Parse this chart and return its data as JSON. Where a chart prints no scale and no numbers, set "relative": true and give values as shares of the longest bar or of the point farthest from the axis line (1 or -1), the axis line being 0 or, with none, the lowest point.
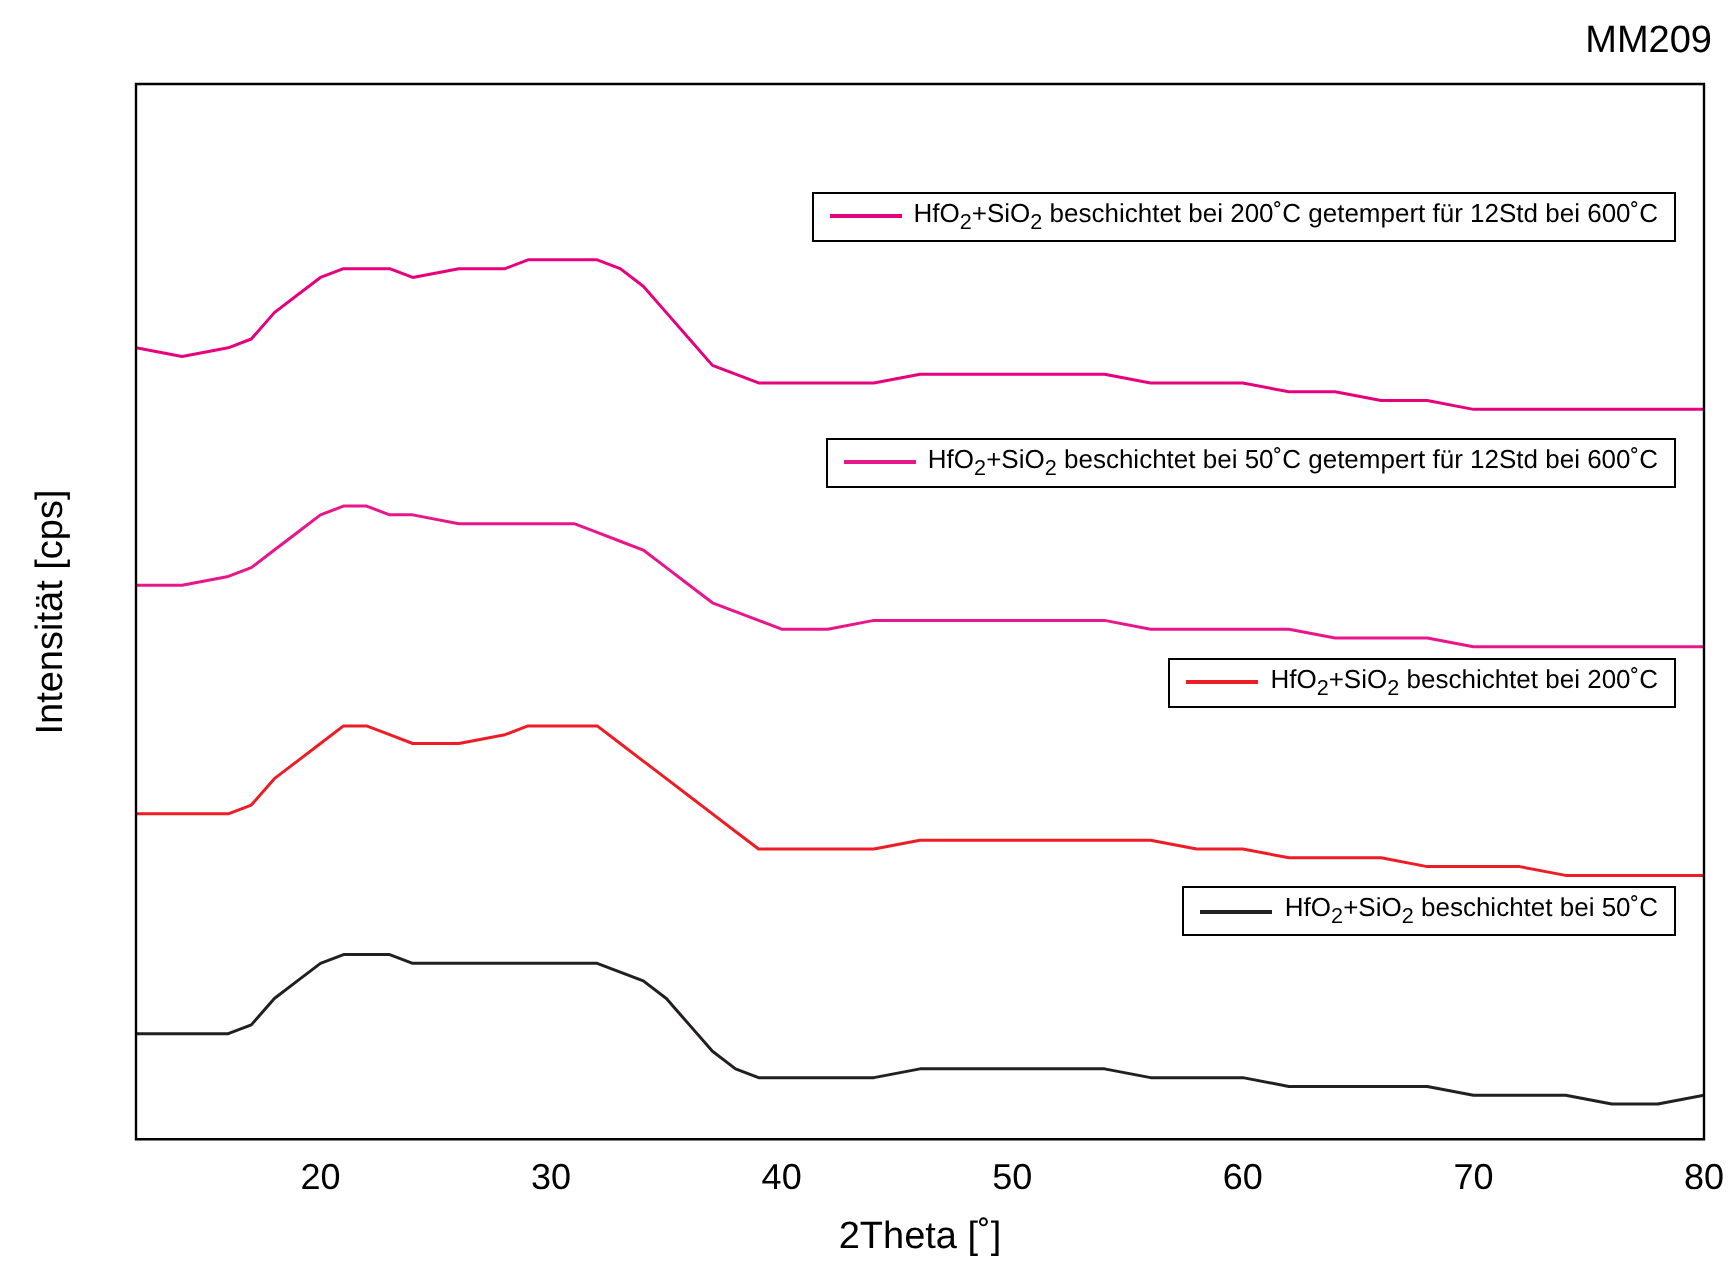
{
  "chart_data": {
    "type": "line",
    "relative": true,
    "annotations": [
      "MM209"
    ],
    "xlabel": "2Theta [˚]",
    "ylabel": "Intensität [cps]",
    "x": [
      12,
      14,
      16,
      17,
      18,
      19,
      20,
      21,
      22,
      23,
      24,
      26,
      28,
      29,
      30,
      31,
      32,
      33,
      34,
      35,
      36,
      37,
      38,
      39,
      40,
      42,
      44,
      46,
      48,
      50,
      52,
      54,
      56,
      58,
      60,
      62,
      64,
      66,
      68,
      70,
      72,
      74,
      76,
      78,
      80
    ],
    "xlim": [
      12,
      80
    ],
    "xticks": [
      20,
      30,
      40,
      50,
      60,
      70,
      80
    ],
    "tick_labels": "x",
    "grid": false,
    "marker": "none",
    "legend": "right",
    "series": [
      {
        "name": "HfO$_{2}$+SiO$_{2}$ beschichtet bei 200˚C getempert für 12Std bei 600˚C",
        "color": "#e6007e",
        "values": [
          0.9,
          0.89,
          0.9,
          0.91,
          0.94,
          0.96,
          0.98,
          0.99,
          0.99,
          0.99,
          0.98,
          0.99,
          0.99,
          1.0,
          1.0,
          1.0,
          1.0,
          0.99,
          0.97,
          0.94,
          0.91,
          0.88,
          0.87,
          0.86,
          0.86,
          0.86,
          0.86,
          0.87,
          0.87,
          0.87,
          0.87,
          0.87,
          0.86,
          0.86,
          0.86,
          0.85,
          0.85,
          0.84,
          0.84,
          0.83,
          0.83,
          0.83,
          0.83,
          0.83,
          0.83
        ]
      },
      {
        "name": "HfO$_{2}$+SiO$_{2}$ beschichtet bei 50˚C getempert für 12Std bei 600˚C",
        "color": "#e8168b",
        "values": [
          0.63,
          0.63,
          0.64,
          0.65,
          0.67,
          0.69,
          0.71,
          0.72,
          0.72,
          0.71,
          0.71,
          0.7,
          0.7,
          0.7,
          0.7,
          0.7,
          0.69,
          0.68,
          0.67,
          0.65,
          0.63,
          0.61,
          0.6,
          0.59,
          0.58,
          0.58,
          0.59,
          0.59,
          0.59,
          0.59,
          0.59,
          0.59,
          0.58,
          0.58,
          0.58,
          0.58,
          0.57,
          0.57,
          0.57,
          0.56,
          0.56,
          0.56,
          0.56,
          0.56,
          0.56
        ]
      },
      {
        "name": "HfO$_{2}$+SiO$_{2}$ beschichtet bei 200˚C",
        "color": "#ee1c25",
        "values": [
          0.37,
          0.37,
          0.37,
          0.38,
          0.41,
          0.43,
          0.45,
          0.47,
          0.47,
          0.46,
          0.45,
          0.45,
          0.46,
          0.47,
          0.47,
          0.47,
          0.47,
          0.45,
          0.43,
          0.41,
          0.39,
          0.37,
          0.35,
          0.33,
          0.33,
          0.33,
          0.33,
          0.34,
          0.34,
          0.34,
          0.34,
          0.34,
          0.34,
          0.33,
          0.33,
          0.32,
          0.32,
          0.32,
          0.31,
          0.31,
          0.31,
          0.3,
          0.3,
          0.3,
          0.3
        ]
      },
      {
        "name": "HfO$_{2}$+SiO$_{2}$ beschichtet bei 50˚C",
        "color": "#231f20",
        "values": [
          0.12,
          0.12,
          0.12,
          0.13,
          0.16,
          0.18,
          0.2,
          0.21,
          0.21,
          0.21,
          0.2,
          0.2,
          0.2,
          0.2,
          0.2,
          0.2,
          0.2,
          0.19,
          0.18,
          0.16,
          0.13,
          0.1,
          0.08,
          0.07,
          0.07,
          0.07,
          0.07,
          0.08,
          0.08,
          0.08,
          0.08,
          0.08,
          0.07,
          0.07,
          0.07,
          0.06,
          0.06,
          0.06,
          0.06,
          0.05,
          0.05,
          0.05,
          0.04,
          0.04,
          0.05
        ]
      }
    ]
  }
}
